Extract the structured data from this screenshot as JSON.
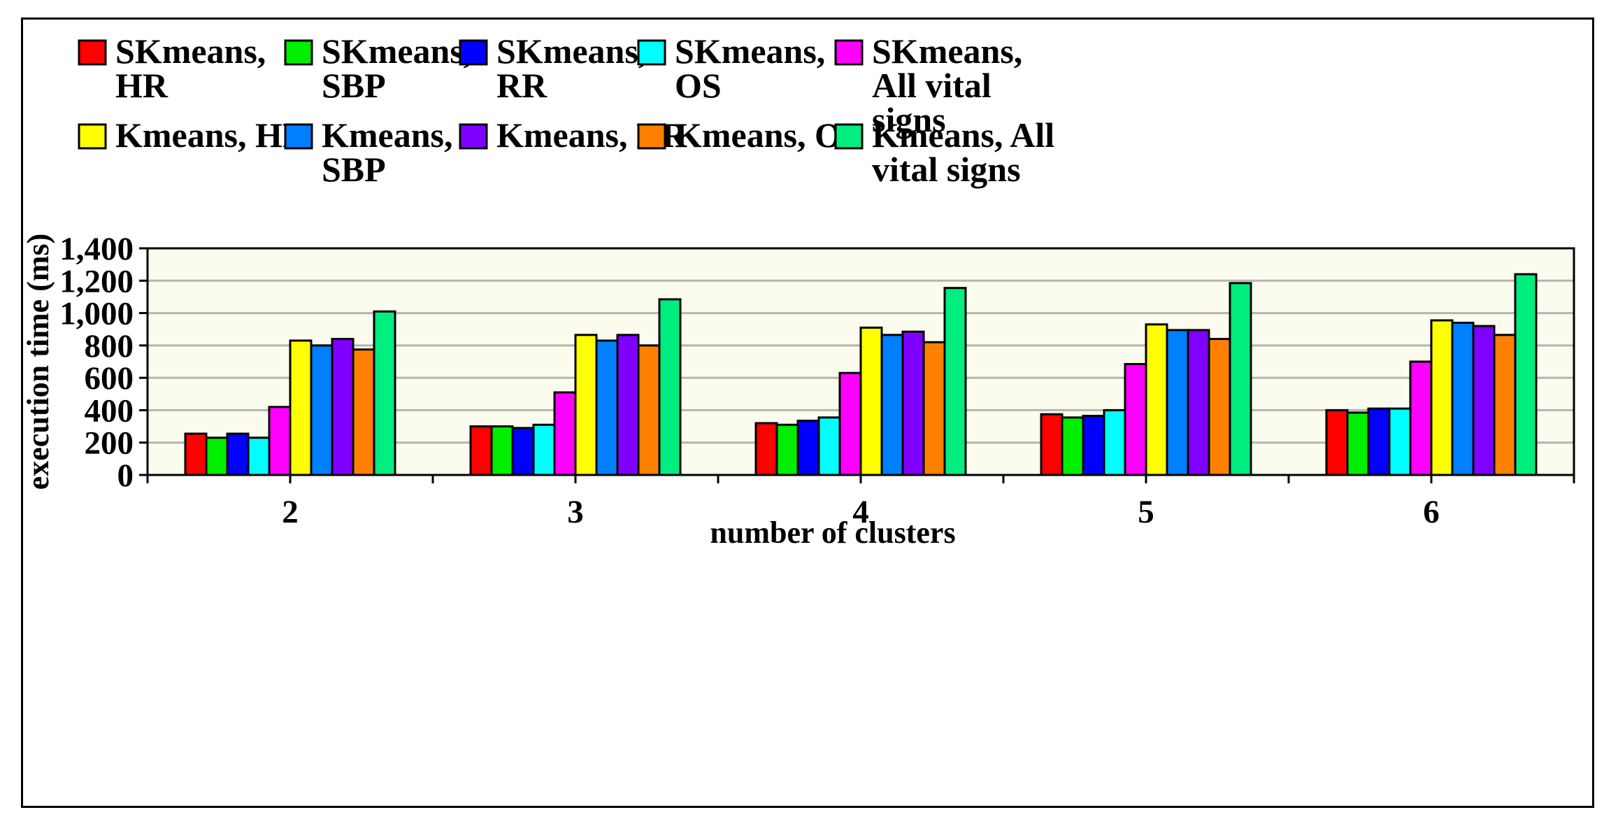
{
  "chart_data": {
    "type": "bar",
    "title": "",
    "xlabel": "number of clusters",
    "ylabel": "execution time (ms)",
    "ylim": [
      0,
      1400
    ],
    "yticks": [
      0,
      200,
      400,
      600,
      800,
      1000,
      1200,
      1400
    ],
    "ytick_labels": [
      "0",
      "200",
      "400",
      "600",
      "800",
      "1,000",
      "1,200",
      "1,400"
    ],
    "grid": true,
    "legend_position": "top",
    "categories": [
      "2",
      "3",
      "4",
      "5",
      "6"
    ],
    "series": [
      {
        "name": "SKmeans, HR",
        "legend_lines": [
          "SKmeans,",
          "HR"
        ],
        "color": "#ff0000",
        "values": [
          255,
          300,
          320,
          375,
          400
        ]
      },
      {
        "name": "SKmeans, SBP",
        "legend_lines": [
          "SKmeans,",
          "SBP"
        ],
        "color": "#00ee00",
        "values": [
          230,
          300,
          310,
          355,
          385
        ]
      },
      {
        "name": "SKmeans, RR",
        "legend_lines": [
          "SKmeans,",
          "RR"
        ],
        "color": "#0000ff",
        "values": [
          255,
          290,
          335,
          365,
          410
        ]
      },
      {
        "name": "SKmeans, OS",
        "legend_lines": [
          "SKmeans,",
          "OS"
        ],
        "color": "#00ffff",
        "values": [
          230,
          310,
          355,
          400,
          410
        ]
      },
      {
        "name": "SKmeans, All vital signs",
        "legend_lines": [
          "SKmeans,",
          "All vital",
          "signs"
        ],
        "color": "#ff00ff",
        "values": [
          420,
          510,
          630,
          685,
          700
        ]
      },
      {
        "name": "Kmeans, HR",
        "legend_lines": [
          "Kmeans, HR"
        ],
        "color": "#ffff00",
        "values": [
          830,
          865,
          910,
          930,
          955
        ]
      },
      {
        "name": "Kmeans, SBP",
        "legend_lines": [
          "Kmeans,",
          "SBP"
        ],
        "color": "#0080ff",
        "values": [
          800,
          830,
          865,
          895,
          940
        ]
      },
      {
        "name": "Kmeans, RR",
        "legend_lines": [
          "Kmeans, RR"
        ],
        "color": "#8000ff",
        "values": [
          840,
          865,
          885,
          895,
          920
        ]
      },
      {
        "name": "Kmeans, OS",
        "legend_lines": [
          "Kmeans, OS"
        ],
        "color": "#ff8000",
        "values": [
          775,
          800,
          820,
          840,
          865
        ]
      },
      {
        "name": "Kmeans, All vital signs",
        "legend_lines": [
          "Kmeans, All",
          "vital signs"
        ],
        "color": "#00ee80",
        "values": [
          1010,
          1085,
          1155,
          1185,
          1240
        ]
      }
    ]
  }
}
